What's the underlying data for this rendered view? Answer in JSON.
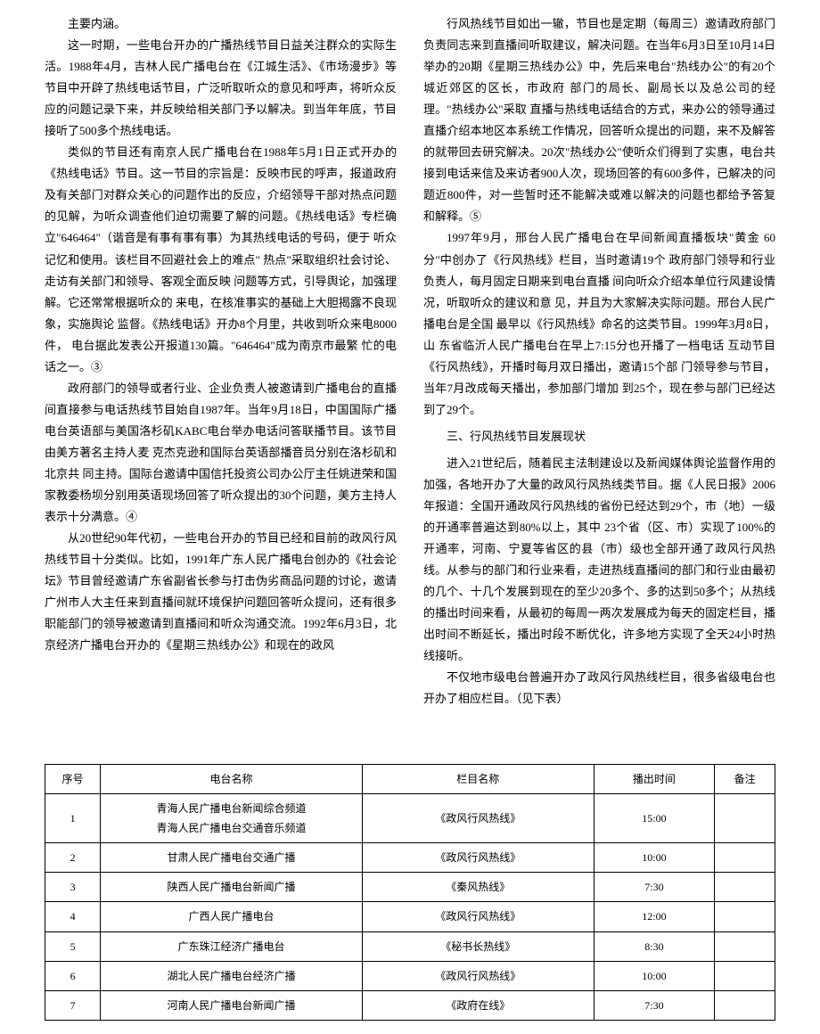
{
  "left": {
    "p1": "主要内涵。",
    "p2": "这一时期，一些电台开办的广播热线节目日益关注群众的实际生活。1988年4月，吉林人民广播电台在《江城生活》、《市场漫步》等节目中开辟了热线电话节目，广泛听取听众的意见和呼声，将听众反应的问题记录下来，并反映给相关部门予以解决。到当年年底，节目接听了500多个热线电话。",
    "p3": "类似的节目还有南京人民广播电台在1988年5月1日正式开办的《热线电话》节目。这一节目的宗旨是：反映市民的呼声，报道政府及有关部门对群众关心的问题作出的反应，介绍领导干部对热点问题的见解，为听众调查他们迫切需要了解的问题。《热线电话》专栏确立\"646464\"（谐音是有事有事有事）为其热线电话的号码，便于 听众记忆和使用。该栏目不回避社会上的难点\" 热点\"采取组织社会讨论、走访有关部门和领导、客观全面反映 问题等方式，引导舆论，加强理解。它还常常根据听众的 来电，在核准事实的基础上大胆揭露不良现象，实施舆论 监督。《热线电话》开办8个月里，共收到听众来电8000件， 电台据此发表公开报道130篇。\"646464\"成为南京市最繁 忙的电话之一。③",
    "p4": "政府部门的领导或者行业、企业负责人被邀请到广播电台的直播间直接参与电话热线节目始自1987年。当年9月18日，中国国际广播电台英语部与美国洛杉矶KABC电台举办电话问答联播节目。该节目由美方著名主持人麦 克杰克逊和国际台英语部播音员分别在洛杉矶和北京共 同主持。国际台邀请中国信托投资公司办公厅主任姚进荣和国家教委杨坝分别用英语现场回答了听众提出的30个问题，美方主持人表示十分满意。④",
    "p5": "从20世纪90年代初，一些电台开办的节目已经和目前的政风行风热线节目十分类似。比如，1991年广东人民广播电台创办的《社会论坛》节目曾经邀请广东省副省长参与打击伪劣商品问题的讨论，邀请广州市人大主任来到直播间就环境保护问题回答听众提问，还有很多职能部门的领导被邀请到直播间和听众沟通交流。1992年6月3日，北京经济广播电台开办的《星期三热线办公》和现在的政风"
  },
  "right": {
    "p1": "行风热线节目如出一辙，节目也是定期（每周三）邀请政府部门负责同志来到直播间听取建议，解决问题。在当年6月3日至10月14日举办的20期《星期三热线办公》中，先后来电台\"热线办公\"的有20个城近郊区的区长，市政府 部门的局长、副局长以及总公司的经理。\"热线办公\"采取 直播与热线电话结合的方式，来办公的领导通过直播介绍本地区本系统工作情况，回答听众提出的问题，来不及解答的就带回去研究解决。20次\"热线办公\"使听众们得到了实惠，电台共接到电话来信及来访者900人次，现场回答的有600多件，已解决的问题近800件，对一些暂时还不能解决或难以解决的问题也都给予答复和解释。⑤",
    "p2": "1997年9月，邢台人民广播电台在早间新闻直播板块\"黄金 60分\"中创办了《行风热线》栏目，当时邀请19个 政府部门领导和行业负责人，每月固定日期来到电台直播 间向听众介绍本单位行风建设情况，听取听众的建议和意 见，并且为大家解决实际问题。邢台人民广播电台是全国 最早以《行风热线》命名的这类节目。1999年3月8日，山 东省临沂人民广播电台在早上7:15分也开播了一档电话 互动节目《行风热线》，开播时每月双日播出，邀请15个部 门领导参与节目，当年7月改成每天播出，参加部门增加 到25个，现在参与部门已经达到了29个。",
    "h1": "三、行风热线节目发展现状",
    "p3": "进入21世纪后，随着民主法制建设以及新闻媒体舆论监督作用的加强，各地开办了大量的政风行风热线类节目。据《人民日报》2006年报道：全国开通政风行风热线的省份已经达到29个，市（地）一级的开通率普遍达到80%以上，其中 23个省（区、市）实现了100%的开通率，河南、宁夏等省区的县（市）级也全部开通了政风行风热线。从参与的部门和行业来看，走进热线直播间的部门和行业由最初的几个、十几个发展到现在的至少20多个、多的达到50多个；从热线的播出时间来看，从最初的每周一两次发展成为每天的固定栏目，播出时间不断延长，播出时段不断优化，许多地方实现了全天24小时热线接听。",
    "p4": "不仅地市级电台普遍开办了政风行风热线栏目，很多省级电台也开办了相应栏目。（见下表）"
  },
  "table": {
    "headers": [
      "序号",
      "电台名称",
      "栏目名称",
      "播出时间",
      "备注"
    ],
    "rows": [
      [
        "1",
        "青海人民广播电台新闻综合频道\n青海人民广播电台交通音乐频道",
        "《政风行风热线》",
        "15:00",
        ""
      ],
      [
        "2",
        "甘肃人民广播电台交通广播",
        "《政风行风热线》",
        "10:00",
        ""
      ],
      [
        "3",
        "陕西人民广播电台新闻广播",
        "《秦风热线》",
        "7:30",
        ""
      ],
      [
        "4",
        "广西人民广播电台",
        "《政风行风热线》",
        "12:00",
        ""
      ],
      [
        "5",
        "广东珠江经济广播电台",
        "《秘书长热线》",
        "8:30",
        ""
      ],
      [
        "6",
        "湖北人民广播电台经济广播",
        "《政风行风热线》",
        "10:00",
        ""
      ],
      [
        "7",
        "河南人民广播电台新闻广播",
        "《政府在线》",
        "7:30",
        ""
      ]
    ]
  }
}
